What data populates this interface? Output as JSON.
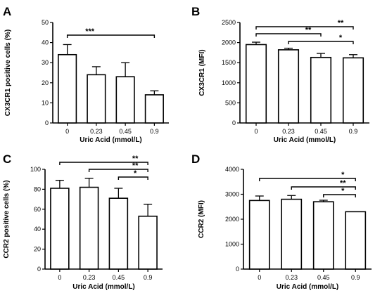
{
  "chart_data": [
    {
      "type": "bar",
      "panel_label": "A",
      "categories": [
        "0",
        "0.23",
        "0.45",
        "0.9"
      ],
      "values": [
        34,
        24,
        23,
        14
      ],
      "errors": [
        5,
        4,
        7,
        2
      ],
      "xlabel": "Uric Acid (mmol/L)",
      "ylabel": "CX3CR1 positive cells (%)",
      "ylim": [
        0,
        50
      ],
      "yticks": [
        0,
        10,
        20,
        30,
        40,
        50
      ],
      "yticklabels": [
        "0",
        "10",
        "20",
        "30",
        "40",
        "50"
      ],
      "significance": [
        {
          "from": 0,
          "to": 3,
          "label": "***"
        }
      ]
    },
    {
      "type": "bar",
      "panel_label": "B",
      "categories": [
        "0",
        "0.23",
        "0.45",
        "0.9"
      ],
      "values": [
        1950,
        1820,
        1630,
        1620
      ],
      "errors": [
        60,
        40,
        100,
        80
      ],
      "xlabel": "Uric Acid (mmol/L)",
      "ylabel": "CX3CR1 (MFI)",
      "ylim": [
        0,
        2500
      ],
      "yticks": [
        0,
        500,
        1000,
        1500,
        2000,
        2500
      ],
      "yticklabels": [
        "0",
        "500",
        "1000",
        "1500",
        "2000",
        "2500"
      ],
      "significance": [
        {
          "from": 0,
          "to": 3,
          "label": "**"
        },
        {
          "from": 0,
          "to": 2,
          "label": "**"
        },
        {
          "from": 1,
          "to": 3,
          "label": "*"
        }
      ]
    },
    {
      "type": "bar",
      "panel_label": "C",
      "categories": [
        "0",
        "0.23",
        "0.45",
        "0.9"
      ],
      "values": [
        81,
        82,
        71,
        53
      ],
      "errors": [
        8,
        9,
        10,
        12
      ],
      "xlabel": "Uric Acid (mmol/L)",
      "ylabel": "CCR2 positive cells (%)",
      "ylim": [
        0,
        100
      ],
      "yticks": [
        0,
        20,
        40,
        60,
        80,
        100
      ],
      "yticklabels": [
        "0",
        "20",
        "40",
        "60",
        "80",
        "100"
      ],
      "significance": [
        {
          "from": 0,
          "to": 3,
          "label": "**"
        },
        {
          "from": 1,
          "to": 3,
          "label": "**"
        },
        {
          "from": 2,
          "to": 3,
          "label": "*"
        }
      ]
    },
    {
      "type": "bar",
      "panel_label": "D",
      "categories": [
        "0",
        "0.23",
        "0.45",
        "0.9"
      ],
      "values": [
        2750,
        2800,
        2700,
        2300
      ],
      "errors": [
        180,
        150,
        60,
        0
      ],
      "xlabel": "Uric Acid (mmol/L)",
      "ylabel": "CCR2 (MFI)",
      "ylim": [
        0,
        4000
      ],
      "yticks": [
        0,
        1000,
        2000,
        3000,
        4000
      ],
      "yticklabels": [
        "0",
        "1000",
        "2000",
        "3000",
        "4000"
      ],
      "significance": [
        {
          "from": 0,
          "to": 3,
          "label": "*"
        },
        {
          "from": 1,
          "to": 3,
          "label": "**"
        },
        {
          "from": 2,
          "to": 3,
          "label": "*"
        }
      ]
    }
  ]
}
